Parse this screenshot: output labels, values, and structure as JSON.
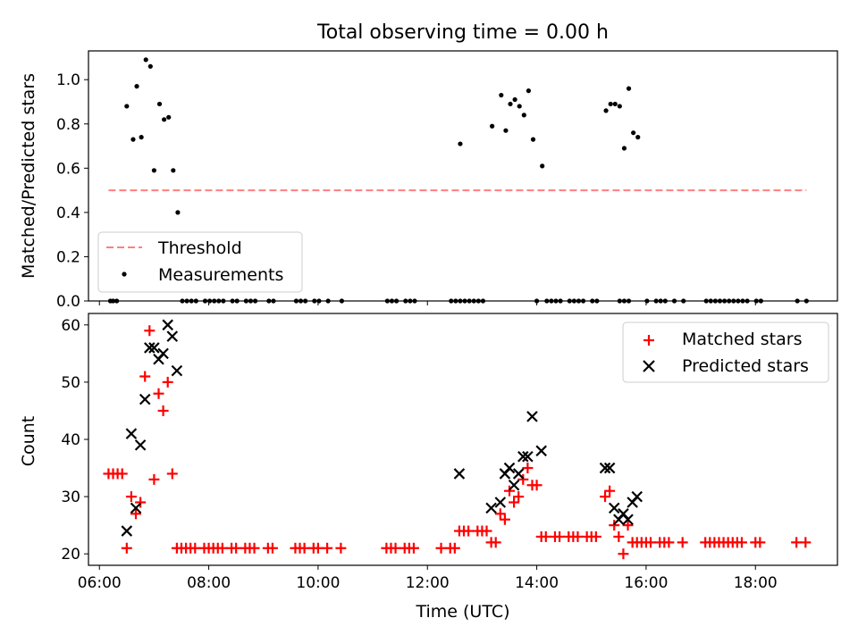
{
  "chart_data": [
    {
      "type": "scatter",
      "title": "Total observing time = 0.00 h",
      "xlabel": "",
      "ylabel": "Matched/Predicted stars",
      "x_unit": "time-of-day (HH:MM, UTC)",
      "xlim": [
        "05:48",
        "19:30"
      ],
      "ylim": [
        0,
        1.13
      ],
      "x_ticks": [
        "06:00",
        "08:00",
        "10:00",
        "12:00",
        "14:00",
        "16:00",
        "18:00"
      ],
      "y_ticks": [
        "0.0",
        "0.2",
        "0.4",
        "0.6",
        "0.8",
        "1.0"
      ],
      "legend_position": "lower-left",
      "threshold": {
        "name": "Threshold",
        "value": 0.5,
        "x_range": [
          "06:10",
          "18:56"
        ],
        "style": "dashed",
        "color": "#ff7f7f"
      },
      "series": [
        {
          "name": "Measurements",
          "color": "#000000",
          "marker": "dot",
          "points": [
            [
              "06:12",
              0
            ],
            [
              "06:15",
              0
            ],
            [
              "06:19",
              0
            ],
            [
              "06:30",
              0.88
            ],
            [
              "06:37",
              0.73
            ],
            [
              "06:41",
              0.97
            ],
            [
              "06:46",
              0.74
            ],
            [
              "06:51",
              1.09
            ],
            [
              "06:56",
              1.06
            ],
            [
              "07:00",
              0.59
            ],
            [
              "07:06",
              0.89
            ],
            [
              "07:11",
              0.82
            ],
            [
              "07:16",
              0.83
            ],
            [
              "07:21",
              0.59
            ],
            [
              "07:26",
              0.4
            ],
            [
              "07:31",
              0
            ],
            [
              "07:36",
              0
            ],
            [
              "07:41",
              0
            ],
            [
              "07:46",
              0
            ],
            [
              "07:56",
              0
            ],
            [
              "08:01",
              0
            ],
            [
              "08:06",
              0
            ],
            [
              "08:11",
              0
            ],
            [
              "08:16",
              0
            ],
            [
              "08:26",
              0
            ],
            [
              "08:31",
              0
            ],
            [
              "08:41",
              0
            ],
            [
              "08:46",
              0
            ],
            [
              "08:51",
              0
            ],
            [
              "09:06",
              0
            ],
            [
              "09:11",
              0
            ],
            [
              "09:36",
              0
            ],
            [
              "09:41",
              0
            ],
            [
              "09:46",
              0
            ],
            [
              "09:56",
              0
            ],
            [
              "10:01",
              0
            ],
            [
              "10:11",
              0
            ],
            [
              "10:26",
              0
            ],
            [
              "11:16",
              0
            ],
            [
              "11:21",
              0
            ],
            [
              "11:26",
              0
            ],
            [
              "11:36",
              0
            ],
            [
              "11:41",
              0
            ],
            [
              "11:46",
              0
            ],
            [
              "12:26",
              0
            ],
            [
              "12:31",
              0
            ],
            [
              "12:36",
              0
            ],
            [
              "12:41",
              0
            ],
            [
              "12:46",
              0
            ],
            [
              "12:51",
              0
            ],
            [
              "12:56",
              0
            ],
            [
              "12:36",
              0.71
            ],
            [
              "13:01",
              0
            ],
            [
              "13:11",
              0.79
            ],
            [
              "13:21",
              0.93
            ],
            [
              "13:26",
              0.77
            ],
            [
              "13:31",
              0.89
            ],
            [
              "13:36",
              0.91
            ],
            [
              "13:41",
              0.88
            ],
            [
              "13:46",
              0.84
            ],
            [
              "13:51",
              0.95
            ],
            [
              "13:56",
              0.73
            ],
            [
              "14:00",
              0
            ],
            [
              "14:06",
              0.61
            ],
            [
              "14:11",
              0
            ],
            [
              "14:16",
              0
            ],
            [
              "14:21",
              0
            ],
            [
              "14:26",
              0
            ],
            [
              "14:36",
              0
            ],
            [
              "14:41",
              0
            ],
            [
              "14:46",
              0
            ],
            [
              "14:51",
              0
            ],
            [
              "15:01",
              0
            ],
            [
              "15:06",
              0
            ],
            [
              "15:16",
              0.86
            ],
            [
              "15:21",
              0.89
            ],
            [
              "15:26",
              0.89
            ],
            [
              "15:31",
              0.88
            ],
            [
              "15:36",
              0.69
            ],
            [
              "15:41",
              0.96
            ],
            [
              "15:46",
              0.76
            ],
            [
              "15:51",
              0.74
            ],
            [
              "15:31",
              0
            ],
            [
              "15:36",
              0
            ],
            [
              "15:41",
              0
            ],
            [
              "16:01",
              0
            ],
            [
              "16:11",
              0
            ],
            [
              "16:16",
              0
            ],
            [
              "16:21",
              0
            ],
            [
              "16:31",
              0
            ],
            [
              "16:41",
              0
            ],
            [
              "17:06",
              0
            ],
            [
              "17:11",
              0
            ],
            [
              "17:16",
              0
            ],
            [
              "17:21",
              0
            ],
            [
              "17:26",
              0
            ],
            [
              "17:31",
              0
            ],
            [
              "17:36",
              0
            ],
            [
              "17:41",
              0
            ],
            [
              "17:46",
              0
            ],
            [
              "17:51",
              0
            ],
            [
              "18:01",
              0
            ],
            [
              "18:06",
              0
            ],
            [
              "18:46",
              0
            ],
            [
              "18:56",
              0
            ]
          ]
        }
      ]
    },
    {
      "type": "scatter",
      "title": "",
      "xlabel": "Time (UTC)",
      "ylabel": "Count",
      "x_unit": "time-of-day (HH:MM, UTC)",
      "xlim": [
        "05:48",
        "19:30"
      ],
      "ylim": [
        18,
        62
      ],
      "x_ticks": [
        "06:00",
        "08:00",
        "10:00",
        "12:00",
        "14:00",
        "16:00",
        "18:00"
      ],
      "y_ticks": [
        "20",
        "30",
        "40",
        "50",
        "60"
      ],
      "legend_position": "top-right",
      "series": [
        {
          "name": "Matched stars",
          "color": "#ff0000",
          "marker": "plus",
          "points": [
            [
              "06:10",
              34
            ],
            [
              "06:15",
              34
            ],
            [
              "06:20",
              34
            ],
            [
              "06:25",
              34
            ],
            [
              "06:30",
              21
            ],
            [
              "06:35",
              30
            ],
            [
              "06:40",
              27
            ],
            [
              "06:45",
              29
            ],
            [
              "06:50",
              51
            ],
            [
              "06:55",
              59
            ],
            [
              "07:00",
              33
            ],
            [
              "07:05",
              48
            ],
            [
              "07:10",
              45
            ],
            [
              "07:15",
              50
            ],
            [
              "07:20",
              34
            ],
            [
              "07:25",
              21
            ],
            [
              "07:30",
              21
            ],
            [
              "07:35",
              21
            ],
            [
              "07:40",
              21
            ],
            [
              "07:45",
              21
            ],
            [
              "07:55",
              21
            ],
            [
              "08:00",
              21
            ],
            [
              "08:05",
              21
            ],
            [
              "08:10",
              21
            ],
            [
              "08:15",
              21
            ],
            [
              "08:25",
              21
            ],
            [
              "08:30",
              21
            ],
            [
              "08:40",
              21
            ],
            [
              "08:45",
              21
            ],
            [
              "08:50",
              21
            ],
            [
              "09:05",
              21
            ],
            [
              "09:10",
              21
            ],
            [
              "09:35",
              21
            ],
            [
              "09:40",
              21
            ],
            [
              "09:45",
              21
            ],
            [
              "09:55",
              21
            ],
            [
              "10:00",
              21
            ],
            [
              "10:10",
              21
            ],
            [
              "10:25",
              21
            ],
            [
              "11:15",
              21
            ],
            [
              "11:20",
              21
            ],
            [
              "11:25",
              21
            ],
            [
              "11:35",
              21
            ],
            [
              "11:40",
              21
            ],
            [
              "11:45",
              21
            ],
            [
              "12:15",
              21
            ],
            [
              "12:25",
              21
            ],
            [
              "12:30",
              21
            ],
            [
              "12:35",
              24
            ],
            [
              "12:40",
              24
            ],
            [
              "12:45",
              24
            ],
            [
              "12:55",
              24
            ],
            [
              "13:00",
              24
            ],
            [
              "13:05",
              24
            ],
            [
              "13:10",
              22
            ],
            [
              "13:15",
              22
            ],
            [
              "13:20",
              27
            ],
            [
              "13:25",
              26
            ],
            [
              "13:30",
              31
            ],
            [
              "13:35",
              29
            ],
            [
              "13:40",
              30
            ],
            [
              "13:45",
              33
            ],
            [
              "13:50",
              35
            ],
            [
              "13:55",
              32
            ],
            [
              "14:00",
              32
            ],
            [
              "14:05",
              23
            ],
            [
              "14:10",
              23
            ],
            [
              "14:20",
              23
            ],
            [
              "14:25",
              23
            ],
            [
              "14:35",
              23
            ],
            [
              "14:40",
              23
            ],
            [
              "14:45",
              23
            ],
            [
              "14:55",
              23
            ],
            [
              "15:00",
              23
            ],
            [
              "15:05",
              23
            ],
            [
              "15:15",
              30
            ],
            [
              "15:20",
              31
            ],
            [
              "15:25",
              25
            ],
            [
              "15:30",
              23
            ],
            [
              "15:35",
              20
            ],
            [
              "15:40",
              25
            ],
            [
              "15:45",
              22
            ],
            [
              "15:50",
              22
            ],
            [
              "15:55",
              22
            ],
            [
              "16:00",
              22
            ],
            [
              "16:05",
              22
            ],
            [
              "16:15",
              22
            ],
            [
              "16:20",
              22
            ],
            [
              "16:25",
              22
            ],
            [
              "16:40",
              22
            ],
            [
              "17:05",
              22
            ],
            [
              "17:10",
              22
            ],
            [
              "17:15",
              22
            ],
            [
              "17:20",
              22
            ],
            [
              "17:25",
              22
            ],
            [
              "17:30",
              22
            ],
            [
              "17:35",
              22
            ],
            [
              "17:40",
              22
            ],
            [
              "17:45",
              22
            ],
            [
              "18:00",
              22
            ],
            [
              "18:05",
              22
            ],
            [
              "18:45",
              22
            ],
            [
              "18:55",
              22
            ]
          ]
        },
        {
          "name": "Predicted stars",
          "color": "#000000",
          "marker": "x",
          "points": [
            [
              "06:30",
              24
            ],
            [
              "06:35",
              41
            ],
            [
              "06:40",
              28
            ],
            [
              "06:45",
              39
            ],
            [
              "06:50",
              47
            ],
            [
              "06:55",
              56
            ],
            [
              "07:00",
              56
            ],
            [
              "07:05",
              54
            ],
            [
              "07:10",
              55
            ],
            [
              "07:15",
              60
            ],
            [
              "07:20",
              58
            ],
            [
              "07:25",
              52
            ],
            [
              "12:35",
              34
            ],
            [
              "13:10",
              28
            ],
            [
              "13:20",
              29
            ],
            [
              "13:25",
              34
            ],
            [
              "13:30",
              35
            ],
            [
              "13:35",
              32
            ],
            [
              "13:40",
              34
            ],
            [
              "13:45",
              37
            ],
            [
              "13:50",
              37
            ],
            [
              "13:55",
              44
            ],
            [
              "14:05",
              38
            ],
            [
              "15:15",
              35
            ],
            [
              "15:20",
              35
            ],
            [
              "15:25",
              28
            ],
            [
              "15:30",
              26
            ],
            [
              "15:35",
              27
            ],
            [
              "15:40",
              26
            ],
            [
              "15:45",
              29
            ],
            [
              "15:50",
              30
            ]
          ]
        }
      ]
    }
  ]
}
